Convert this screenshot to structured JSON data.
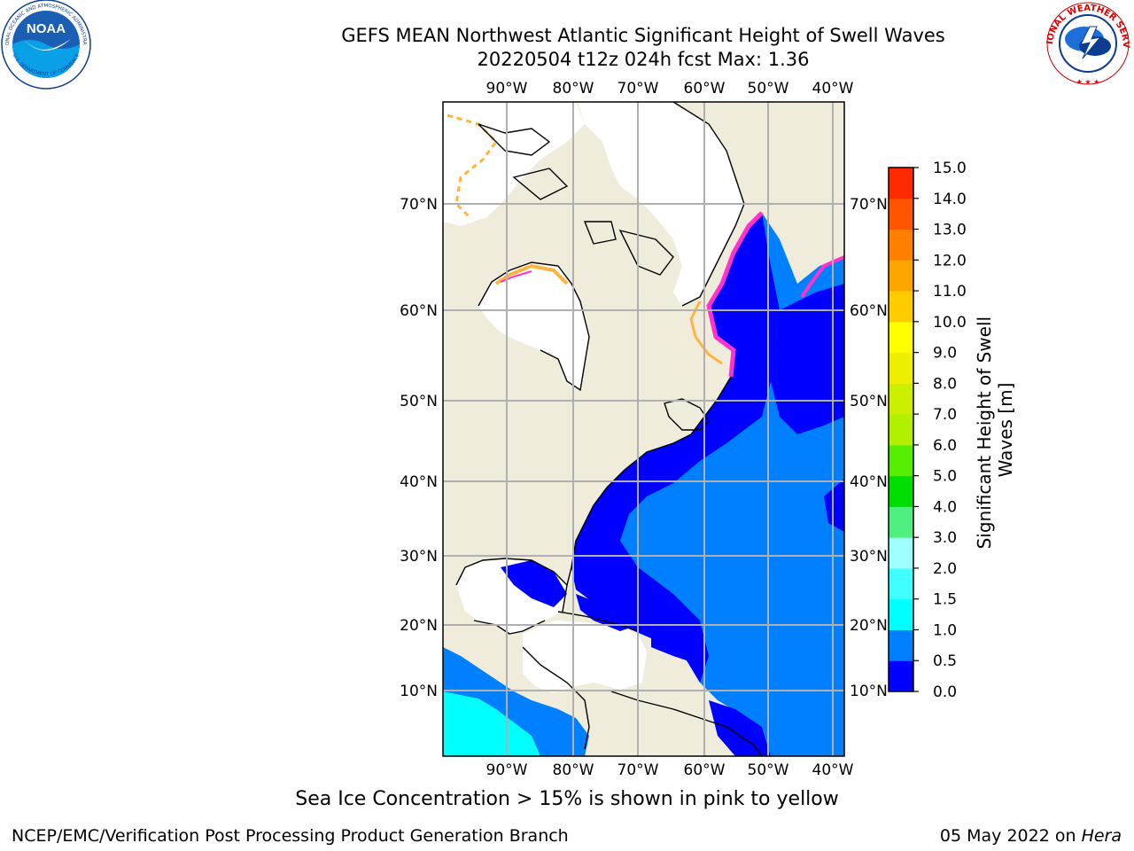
{
  "header": {
    "title_line1": "GEFS MEAN Northwest Atlantic Significant Height of Swell Waves",
    "title_line2": "20220504 t12z 024h fcst   Max: 1.36"
  },
  "logos": {
    "noaa_text": "NOAA",
    "noaa_ring": "NATIONAL OCEANIC AND ATMOSPHERIC ADMINISTRATION",
    "noaa_ring2": "U.S. DEPARTMENT OF COMMERCE",
    "nws_ring": "NATIONAL WEATHER SERVICE"
  },
  "map": {
    "lon_labels": [
      "90°W",
      "80°W",
      "70°W",
      "60°W",
      "50°W",
      "40°W"
    ],
    "lat_labels_left": [
      "70°N",
      "60°N",
      "50°N",
      "40°N",
      "30°N",
      "20°N",
      "10°N"
    ],
    "lat_labels_right": [
      "70°N",
      "60°N",
      "50°N",
      "40°N",
      "30°N",
      "20°N",
      "10°N"
    ],
    "colors": {
      "land": "#efecdc",
      "ice_mask": "#ffffff",
      "ocean_low": "#0000ff",
      "ocean_mid": "#0080ff",
      "ocean_high": "#00ffff",
      "ice_pink": "#ff33cc",
      "ice_orange": "#ffb340",
      "grid": "#b0b0b0"
    }
  },
  "colorbar": {
    "label_line1": "Significant Height of Swell",
    "label_line2": "Waves [m]",
    "ticks": [
      "0.0",
      "0.5",
      "1.0",
      "1.5",
      "2.0",
      "3.0",
      "4.0",
      "5.0",
      "6.0",
      "7.0",
      "8.0",
      "9.0",
      "10.0",
      "11.0",
      "12.0",
      "13.0",
      "14.0",
      "15.0"
    ],
    "colors": [
      "#0000ff",
      "#0080ff",
      "#00ffff",
      "#40ffff",
      "#a0ffff",
      "#50f080",
      "#00dd00",
      "#55ee00",
      "#b0f000",
      "#ccee00",
      "#eeee00",
      "#ffff00",
      "#ffcc00",
      "#ffa500",
      "#ff8000",
      "#ff5500",
      "#ff2a00",
      "#ff0000"
    ]
  },
  "footer": {
    "note": "Sea Ice Concentration > 15% is shown in pink to yellow",
    "left": "NCEP/EMC/Verification Post Processing Product Generation Branch",
    "right_prefix": "05 May 2022 on ",
    "right_machine": "Hera"
  }
}
